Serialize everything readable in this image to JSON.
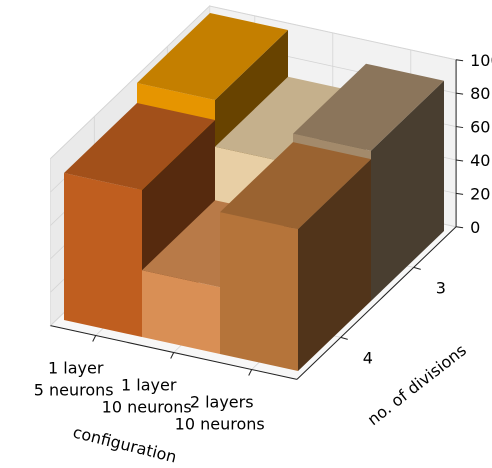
{
  "chart_data": {
    "type": "bar3d",
    "title": "",
    "xlabel": "configuration",
    "ylabel": "no. of divisions",
    "zlabel": "",
    "x_ticks": [
      [
        "1 layer",
        "5 neurons"
      ],
      [
        "1 layer",
        "10 neurons"
      ],
      [
        "2 layers",
        "10 neurons"
      ]
    ],
    "y_ticks": [
      "3",
      "4"
    ],
    "z_ticks": [
      "0",
      "20",
      "40",
      "60",
      "80",
      "100"
    ],
    "zlim": [
      0,
      100
    ],
    "grid": true,
    "bars": [
      {
        "configuration": "1 layer\n5 neurons",
        "divisions": 3,
        "value": 100,
        "color": "#e69500"
      },
      {
        "configuration": "1 layer\n10 neurons",
        "divisions": 3,
        "value": 72,
        "color": "#e8cfa5"
      },
      {
        "configuration": "2 layers\n10 neurons",
        "divisions": 3,
        "value": 90,
        "color": "#a38a6b"
      },
      {
        "configuration": "1 layer\n5 neurons",
        "divisions": 4,
        "value": 88,
        "color": "#bf5e1f"
      },
      {
        "configuration": "1 layer\n10 neurons",
        "divisions": 4,
        "value": 40,
        "color": "#d98f55"
      },
      {
        "configuration": "2 layers\n10 neurons",
        "divisions": 4,
        "value": 85,
        "color": "#b5743a"
      }
    ]
  }
}
